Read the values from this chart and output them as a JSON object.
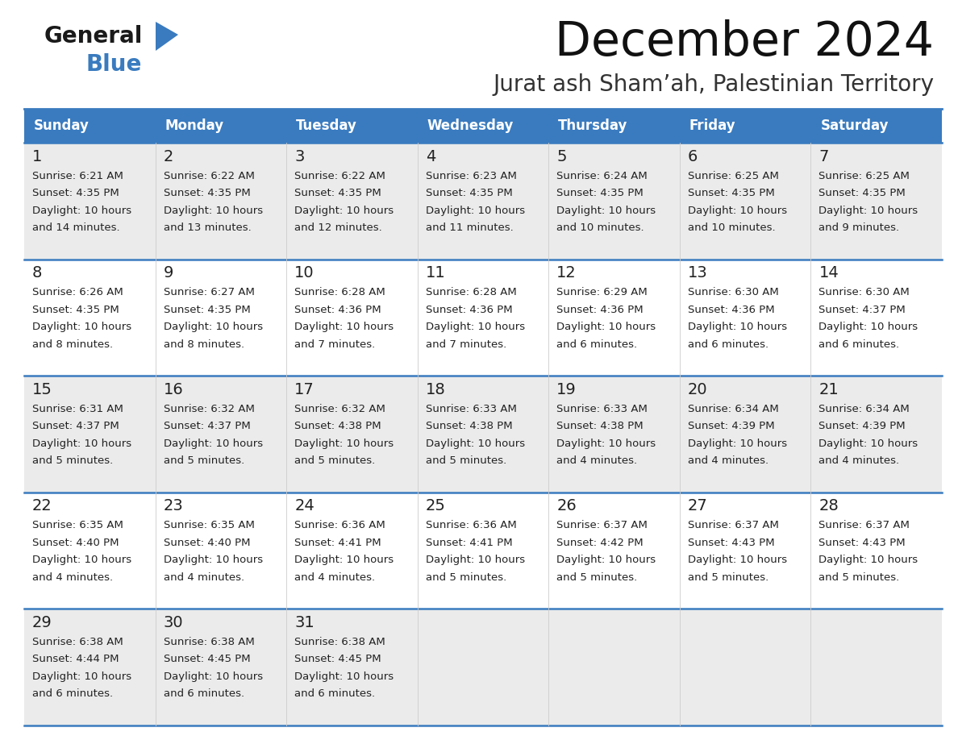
{
  "title": "December 2024",
  "subtitle": "Jurat ash Sham’ah, Palestinian Territory",
  "header_bg_color": "#3a7bbf",
  "header_text_color": "#ffffff",
  "days_of_week": [
    "Sunday",
    "Monday",
    "Tuesday",
    "Wednesday",
    "Thursday",
    "Friday",
    "Saturday"
  ],
  "row_odd_bg": "#ebebeb",
  "row_even_bg": "#ffffff",
  "border_color": "#3a7bbf",
  "cell_border_color": "#bbbbbb",
  "text_color": "#222222",
  "calendar_data": [
    [
      {
        "day": 1,
        "sunrise": "6:21 AM",
        "sunset": "4:35 PM",
        "daylight": "10 hours and 14 minutes."
      },
      {
        "day": 2,
        "sunrise": "6:22 AM",
        "sunset": "4:35 PM",
        "daylight": "10 hours and 13 minutes."
      },
      {
        "day": 3,
        "sunrise": "6:22 AM",
        "sunset": "4:35 PM",
        "daylight": "10 hours and 12 minutes."
      },
      {
        "day": 4,
        "sunrise": "6:23 AM",
        "sunset": "4:35 PM",
        "daylight": "10 hours and 11 minutes."
      },
      {
        "day": 5,
        "sunrise": "6:24 AM",
        "sunset": "4:35 PM",
        "daylight": "10 hours and 10 minutes."
      },
      {
        "day": 6,
        "sunrise": "6:25 AM",
        "sunset": "4:35 PM",
        "daylight": "10 hours and 10 minutes."
      },
      {
        "day": 7,
        "sunrise": "6:25 AM",
        "sunset": "4:35 PM",
        "daylight": "10 hours and 9 minutes."
      }
    ],
    [
      {
        "day": 8,
        "sunrise": "6:26 AM",
        "sunset": "4:35 PM",
        "daylight": "10 hours and 8 minutes."
      },
      {
        "day": 9,
        "sunrise": "6:27 AM",
        "sunset": "4:35 PM",
        "daylight": "10 hours and 8 minutes."
      },
      {
        "day": 10,
        "sunrise": "6:28 AM",
        "sunset": "4:36 PM",
        "daylight": "10 hours and 7 minutes."
      },
      {
        "day": 11,
        "sunrise": "6:28 AM",
        "sunset": "4:36 PM",
        "daylight": "10 hours and 7 minutes."
      },
      {
        "day": 12,
        "sunrise": "6:29 AM",
        "sunset": "4:36 PM",
        "daylight": "10 hours and 6 minutes."
      },
      {
        "day": 13,
        "sunrise": "6:30 AM",
        "sunset": "4:36 PM",
        "daylight": "10 hours and 6 minutes."
      },
      {
        "day": 14,
        "sunrise": "6:30 AM",
        "sunset": "4:37 PM",
        "daylight": "10 hours and 6 minutes."
      }
    ],
    [
      {
        "day": 15,
        "sunrise": "6:31 AM",
        "sunset": "4:37 PM",
        "daylight": "10 hours and 5 minutes."
      },
      {
        "day": 16,
        "sunrise": "6:32 AM",
        "sunset": "4:37 PM",
        "daylight": "10 hours and 5 minutes."
      },
      {
        "day": 17,
        "sunrise": "6:32 AM",
        "sunset": "4:38 PM",
        "daylight": "10 hours and 5 minutes."
      },
      {
        "day": 18,
        "sunrise": "6:33 AM",
        "sunset": "4:38 PM",
        "daylight": "10 hours and 5 minutes."
      },
      {
        "day": 19,
        "sunrise": "6:33 AM",
        "sunset": "4:38 PM",
        "daylight": "10 hours and 4 minutes."
      },
      {
        "day": 20,
        "sunrise": "6:34 AM",
        "sunset": "4:39 PM",
        "daylight": "10 hours and 4 minutes."
      },
      {
        "day": 21,
        "sunrise": "6:34 AM",
        "sunset": "4:39 PM",
        "daylight": "10 hours and 4 minutes."
      }
    ],
    [
      {
        "day": 22,
        "sunrise": "6:35 AM",
        "sunset": "4:40 PM",
        "daylight": "10 hours and 4 minutes."
      },
      {
        "day": 23,
        "sunrise": "6:35 AM",
        "sunset": "4:40 PM",
        "daylight": "10 hours and 4 minutes."
      },
      {
        "day": 24,
        "sunrise": "6:36 AM",
        "sunset": "4:41 PM",
        "daylight": "10 hours and 4 minutes."
      },
      {
        "day": 25,
        "sunrise": "6:36 AM",
        "sunset": "4:41 PM",
        "daylight": "10 hours and 5 minutes."
      },
      {
        "day": 26,
        "sunrise": "6:37 AM",
        "sunset": "4:42 PM",
        "daylight": "10 hours and 5 minutes."
      },
      {
        "day": 27,
        "sunrise": "6:37 AM",
        "sunset": "4:43 PM",
        "daylight": "10 hours and 5 minutes."
      },
      {
        "day": 28,
        "sunrise": "6:37 AM",
        "sunset": "4:43 PM",
        "daylight": "10 hours and 5 minutes."
      }
    ],
    [
      {
        "day": 29,
        "sunrise": "6:38 AM",
        "sunset": "4:44 PM",
        "daylight": "10 hours and 6 minutes."
      },
      {
        "day": 30,
        "sunrise": "6:38 AM",
        "sunset": "4:45 PM",
        "daylight": "10 hours and 6 minutes."
      },
      {
        "day": 31,
        "sunrise": "6:38 AM",
        "sunset": "4:45 PM",
        "daylight": "10 hours and 6 minutes."
      },
      null,
      null,
      null,
      null
    ]
  ]
}
